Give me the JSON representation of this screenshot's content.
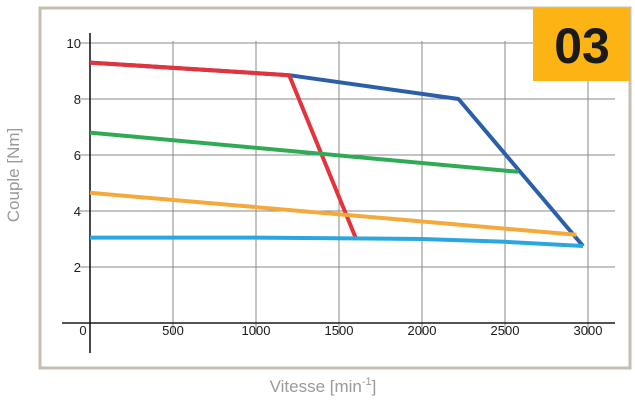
{
  "badge": {
    "text": "03",
    "color": "#fbb414"
  },
  "colors": {
    "frame": "#c7bdb0",
    "grid": "#8a8a8a",
    "axis": "#1a1a1a"
  },
  "chart_data": {
    "type": "line",
    "title": "",
    "xlabel": {
      "main": "Vitesse [min",
      "sup": "-1",
      "end": "]"
    },
    "ylabel": "Couple [Nm]",
    "xlim": [
      0,
      3000
    ],
    "ylim": [
      0,
      10
    ],
    "xticks": [
      0,
      500,
      1000,
      1500,
      2000,
      2500,
      3000
    ],
    "yticks": [
      2,
      4,
      6,
      8,
      10
    ],
    "grid": true,
    "legend": "none",
    "series": [
      {
        "color": "#2b5faa",
        "x": [
          0,
          1200,
          2220,
          2970
        ],
        "y": [
          9.3,
          8.85,
          8.0,
          2.75
        ]
      },
      {
        "color": "#e3343d",
        "x": [
          0,
          1200,
          1600
        ],
        "y": [
          9.3,
          8.85,
          3.05
        ]
      },
      {
        "color": "#2faa55",
        "x": [
          0,
          2580
        ],
        "y": [
          6.8,
          5.4
        ]
      },
      {
        "color": "#f4a93a",
        "x": [
          0,
          2930
        ],
        "y": [
          4.65,
          3.15
        ]
      },
      {
        "color": "#2aa7df",
        "x": [
          0,
          1000,
          2000,
          2500,
          2970
        ],
        "y": [
          3.05,
          3.05,
          3.0,
          2.9,
          2.75
        ]
      }
    ]
  }
}
